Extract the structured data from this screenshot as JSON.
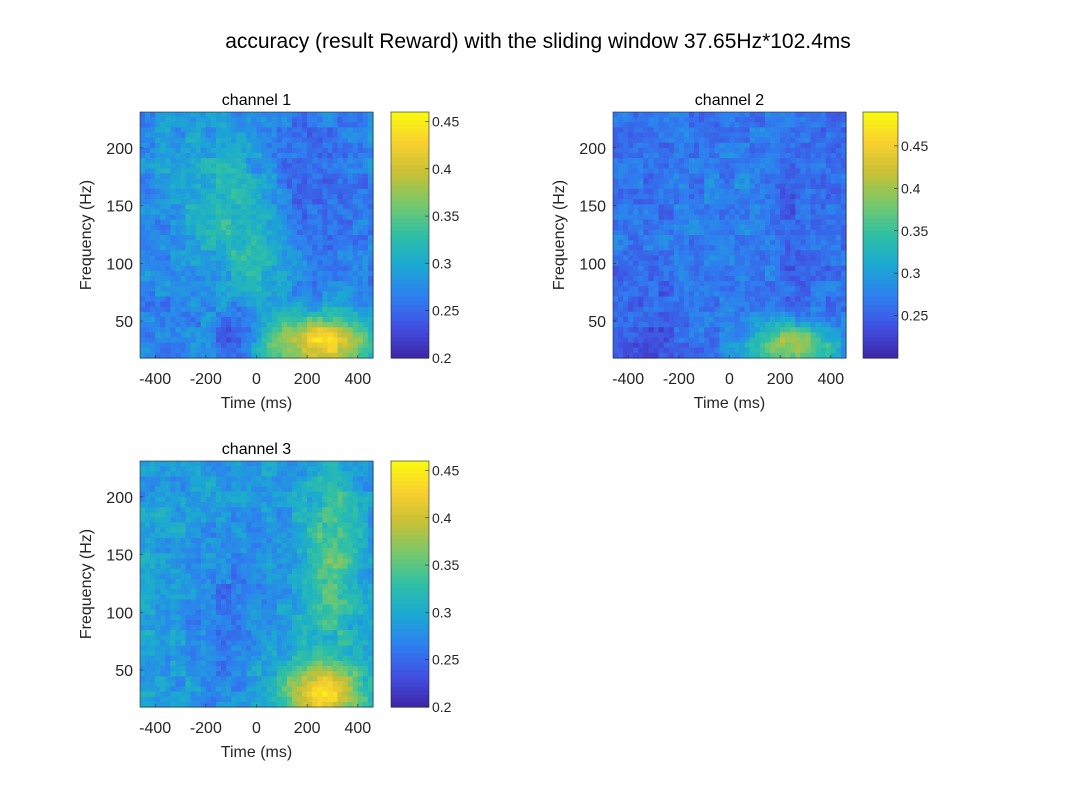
{
  "figure": {
    "title": "accuracy (result Reward) with the sliding window 37.65Hz*102.4ms"
  },
  "colormap": [
    "#3e26a8",
    "#4150e2",
    "#2e7ff0",
    "#1ba9d2",
    "#2ec0a5",
    "#77c86b",
    "#c7c036",
    "#f9d12e",
    "#f9fb0e"
  ],
  "chart_data": [
    {
      "type": "heatmap",
      "title": "channel 1",
      "xlabel": "Time (ms)",
      "ylabel": "Frequency (Hz)",
      "xlim": [
        -460,
        460
      ],
      "ylim": [
        18,
        231
      ],
      "xticks": [
        -400,
        -200,
        0,
        200,
        400
      ],
      "yticks": [
        50,
        100,
        150,
        200
      ],
      "clim": [
        0.2,
        0.46
      ],
      "cticks": [
        0.2,
        0.25,
        0.3,
        0.35,
        0.4,
        0.45
      ],
      "base": 0.27,
      "blobs": [
        {
          "t": 260,
          "f": 30,
          "st": 150,
          "sf": 18,
          "a": 0.16
        },
        {
          "t": -40,
          "f": 110,
          "st": 110,
          "sf": 45,
          "a": 0.05
        },
        {
          "t": -200,
          "f": 175,
          "st": 140,
          "sf": 40,
          "a": 0.03
        },
        {
          "t": -80,
          "f": 35,
          "st": 60,
          "sf": 25,
          "a": -0.05
        },
        {
          "t": 240,
          "f": 160,
          "st": 110,
          "sf": 50,
          "a": -0.025
        }
      ]
    },
    {
      "type": "heatmap",
      "title": "channel 2",
      "xlabel": "Time (ms)",
      "ylabel": "Frequency (Hz)",
      "xlim": [
        -460,
        460
      ],
      "ylim": [
        18,
        231
      ],
      "xticks": [
        -400,
        -200,
        0,
        200,
        400
      ],
      "yticks": [
        50,
        100,
        150,
        200
      ],
      "clim": [
        0.2,
        0.49
      ],
      "cticks": [
        0.25,
        0.3,
        0.35,
        0.4,
        0.45
      ],
      "base": 0.26,
      "blobs": [
        {
          "t": 250,
          "f": 28,
          "st": 120,
          "sf": 14,
          "a": 0.15
        },
        {
          "t": 0,
          "f": 140,
          "st": 200,
          "sf": 70,
          "a": 0.015
        },
        {
          "t": -300,
          "f": 40,
          "st": 80,
          "sf": 30,
          "a": -0.02
        },
        {
          "t": 240,
          "f": 140,
          "st": 40,
          "sf": 60,
          "a": -0.02
        }
      ]
    },
    {
      "type": "heatmap",
      "title": "channel 3",
      "xlabel": "Time (ms)",
      "ylabel": "Frequency (Hz)",
      "xlim": [
        -460,
        460
      ],
      "ylim": [
        18,
        231
      ],
      "xticks": [
        -400,
        -200,
        0,
        200,
        400
      ],
      "yticks": [
        50,
        100,
        150,
        200
      ],
      "clim": [
        0.2,
        0.46
      ],
      "cticks": [
        0.2,
        0.25,
        0.3,
        0.35,
        0.4,
        0.45
      ],
      "base": 0.285,
      "blobs": [
        {
          "t": 260,
          "f": 30,
          "st": 110,
          "sf": 18,
          "a": 0.15
        },
        {
          "t": 300,
          "f": 145,
          "st": 75,
          "sf": 55,
          "a": 0.07
        },
        {
          "t": -150,
          "f": 100,
          "st": 100,
          "sf": 45,
          "a": -0.025
        },
        {
          "t": -350,
          "f": 140,
          "st": 100,
          "sf": 80,
          "a": 0.01
        }
      ]
    }
  ]
}
